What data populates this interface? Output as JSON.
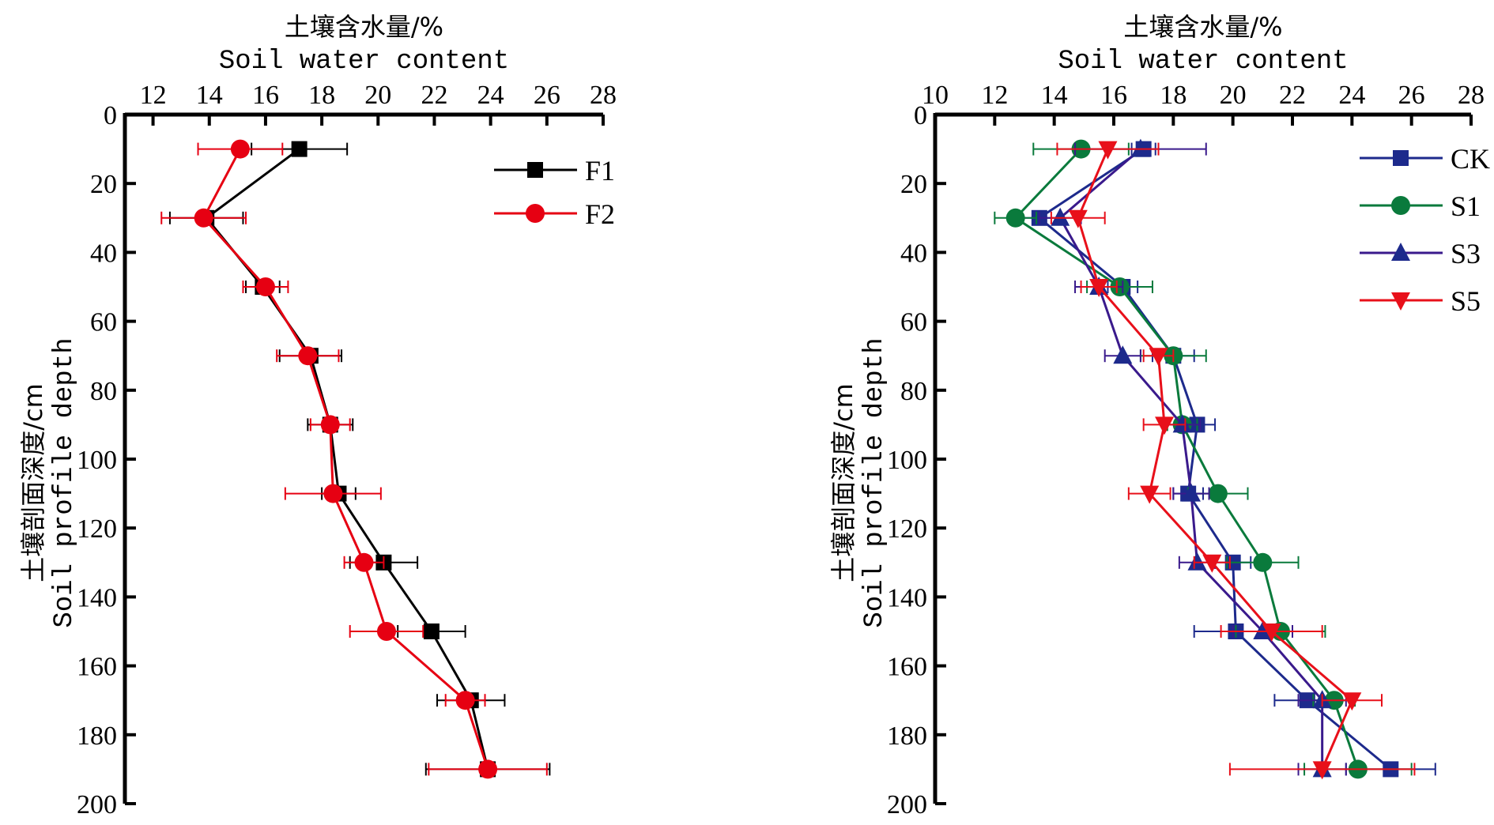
{
  "chart_data": [
    {
      "type": "line",
      "orientation": "depth-profile",
      "title": "",
      "xlabel_cn": "土壤含水量/%",
      "xlabel": "Soil water content",
      "ylabel_cn": "土壤剖面深度/cm",
      "ylabel": "Soil profile depth",
      "xlim": [
        11,
        28
      ],
      "ylim": [
        0,
        200
      ],
      "xticks": [
        12,
        14,
        16,
        18,
        20,
        22,
        24,
        26,
        28
      ],
      "yticks": [
        0,
        20,
        40,
        60,
        80,
        100,
        120,
        140,
        160,
        180,
        200
      ],
      "x_axis_position": "top",
      "y_inverted": true,
      "grid": false,
      "legend_position": "top-right",
      "depths": [
        10,
        30,
        50,
        70,
        90,
        110,
        130,
        150,
        170,
        190
      ],
      "series": [
        {
          "name": "F1",
          "color": "#000000",
          "marker": "square",
          "values": [
            17.2,
            13.9,
            15.9,
            17.6,
            18.3,
            18.6,
            20.2,
            21.9,
            23.3,
            23.9
          ],
          "errors": [
            1.7,
            1.3,
            0.6,
            1.1,
            0.8,
            0.6,
            1.2,
            1.2,
            1.2,
            2.2
          ]
        },
        {
          "name": "F2",
          "color": "#e60012",
          "marker": "circle",
          "values": [
            15.1,
            13.8,
            16.0,
            17.5,
            18.3,
            18.4,
            19.5,
            20.3,
            23.1,
            23.9
          ],
          "errors": [
            1.5,
            1.5,
            0.8,
            1.1,
            0.7,
            1.7,
            0.7,
            1.3,
            0.7,
            2.1
          ]
        }
      ]
    },
    {
      "type": "line",
      "orientation": "depth-profile",
      "title": "",
      "xlabel_cn": "土壤含水量/%",
      "xlabel": "Soil water content",
      "ylabel_cn": "土壤剖面深度/cm",
      "ylabel": "Soil profile depth",
      "xlim": [
        10,
        28
      ],
      "ylim": [
        0,
        200
      ],
      "xticks": [
        10,
        12,
        14,
        16,
        18,
        20,
        22,
        24,
        26,
        28
      ],
      "yticks": [
        0,
        20,
        40,
        60,
        80,
        100,
        120,
        140,
        160,
        180,
        200
      ],
      "x_axis_position": "top",
      "y_inverted": true,
      "grid": false,
      "legend_position": "top-right",
      "depths": [
        10,
        30,
        50,
        70,
        90,
        110,
        130,
        150,
        170,
        190
      ],
      "series": [
        {
          "name": "CK",
          "color": "#1d2a8c",
          "marker": "square",
          "values": [
            17.0,
            13.5,
            16.3,
            18.0,
            18.8,
            18.5,
            20.0,
            20.1,
            22.5,
            25.3
          ],
          "errors": [
            0.4,
            0.7,
            0.5,
            0.7,
            0.6,
            0.5,
            0.6,
            1.4,
            1.1,
            1.5
          ]
        },
        {
          "name": "S1",
          "color": "#0a7a3c",
          "marker": "circle",
          "values": [
            14.9,
            12.7,
            16.2,
            18.0,
            18.3,
            19.5,
            21.0,
            21.6,
            23.4,
            24.2
          ],
          "errors": [
            1.6,
            0.7,
            1.1,
            1.1,
            0.5,
            1.0,
            1.2,
            1.5,
            0.7,
            1.8
          ]
        },
        {
          "name": "S3",
          "color": "#3a1a8c",
          "marker": "triangle-up",
          "values": [
            16.9,
            14.2,
            15.5,
            16.3,
            18.3,
            18.6,
            18.8,
            21.0,
            23.0,
            23.0
          ],
          "errors": [
            2.2,
            0.7,
            0.8,
            0.6,
            0.6,
            0.6,
            0.6,
            1.0,
            0.8,
            0.8
          ]
        },
        {
          "name": "S5",
          "color": "#e8101a",
          "marker": "triangle-down",
          "values": [
            15.8,
            14.8,
            15.5,
            17.5,
            17.7,
            17.2,
            19.3,
            21.3,
            24.0,
            23.0
          ],
          "errors": [
            1.7,
            0.9,
            0.6,
            0.5,
            0.7,
            0.7,
            0.6,
            1.7,
            1.0,
            3.1
          ]
        }
      ]
    }
  ]
}
